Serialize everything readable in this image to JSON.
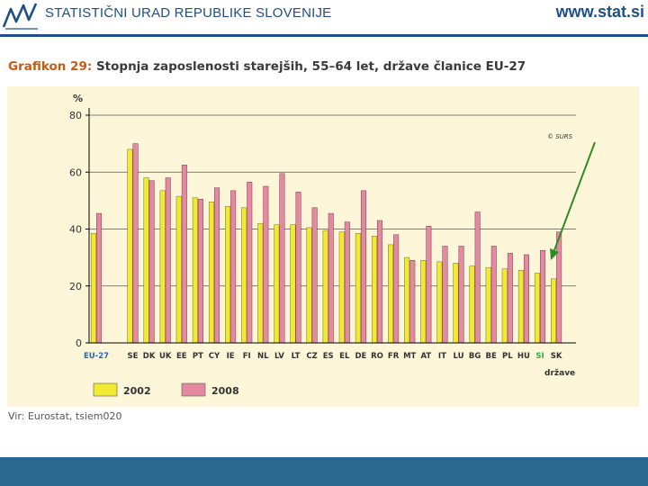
{
  "header": {
    "org_name": "STATISTIČNI URAD REPUBLIKE SLOVENIJE",
    "website": "www.stat.si",
    "logo_icon": "sursa-logo-icon"
  },
  "title": {
    "label": "Grafikon 29:",
    "text": "Stopnja zaposlenosti starejših, 55–64 let, države članice EU-27"
  },
  "source": "Vir: Eurostat, tsiem020",
  "colors": {
    "series_2002": "#f2ea30",
    "series_2008": "#e48aa0",
    "panel": "#fdf6d8",
    "eu_label": "#2a6aa8",
    "si_label": "#3aa64b",
    "arrow": "#2e8b25",
    "header_blue": "#1f4f86",
    "footer": "#2a6890"
  },
  "chart_data": {
    "type": "bar",
    "ylabel": "%",
    "xlabel": "države",
    "ylim": [
      0,
      80
    ],
    "yticks": [
      0,
      20,
      40,
      60,
      80
    ],
    "grid": true,
    "watermark": "© SURS",
    "legend_position": "bottom-left",
    "categories": [
      "EU-27",
      "SE",
      "DK",
      "UK",
      "EE",
      "PT",
      "CY",
      "IE",
      "FI",
      "NL",
      "LV",
      "LT",
      "CZ",
      "ES",
      "EL",
      "DE",
      "RO",
      "FR",
      "MT",
      "AT",
      "IT",
      "LU",
      "BG",
      "BE",
      "PL",
      "HU",
      "SI",
      "SK"
    ],
    "highlight": "SI",
    "series": [
      {
        "name": "2002",
        "values": [
          38.5,
          68,
          58,
          53.5,
          51.5,
          51,
          49.5,
          48,
          47.5,
          42,
          41.5,
          41.5,
          40.5,
          39.5,
          39,
          38.5,
          37.5,
          34.5,
          30,
          29,
          28.5,
          28,
          27,
          26.5,
          26,
          25.5,
          24.5,
          22.5
        ]
      },
      {
        "name": "2008",
        "values": [
          45.5,
          70,
          57,
          58,
          62.5,
          50.5,
          54.5,
          53.5,
          56.5,
          55,
          59.5,
          53,
          47.5,
          45.5,
          42.5,
          53.5,
          43,
          38,
          29,
          41,
          34,
          34,
          46,
          34,
          31.5,
          31,
          32.5,
          39
        ]
      }
    ]
  }
}
